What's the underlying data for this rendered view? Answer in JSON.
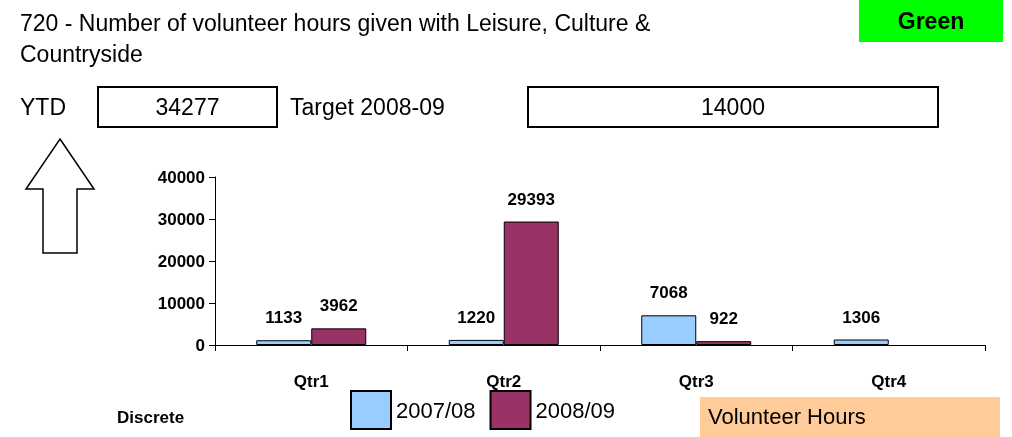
{
  "chart_data": {
    "type": "bar",
    "title": "720 - Number of volunteer hours given with Leisure, Culture & Countryside",
    "categories": [
      "Qtr1",
      "Qtr2",
      "Qtr3",
      "Qtr4"
    ],
    "series": [
      {
        "name": "2007/08",
        "color": "#99ccff",
        "values": [
          1133,
          1220,
          7068,
          1306
        ]
      },
      {
        "name": "2008/09",
        "color": "#993366",
        "values": [
          3962,
          29393,
          922,
          null
        ]
      }
    ],
    "ylim": [
      0,
      40000
    ],
    "yticks": [
      0,
      10000,
      20000,
      30000,
      40000
    ],
    "data_labels": true,
    "grid": false,
    "legend": "bottom",
    "annotations": [
      "Green",
      "YTD",
      "34277",
      "Target 2008-09",
      "14000",
      "Discrete",
      "Volunteer Hours"
    ]
  }
}
